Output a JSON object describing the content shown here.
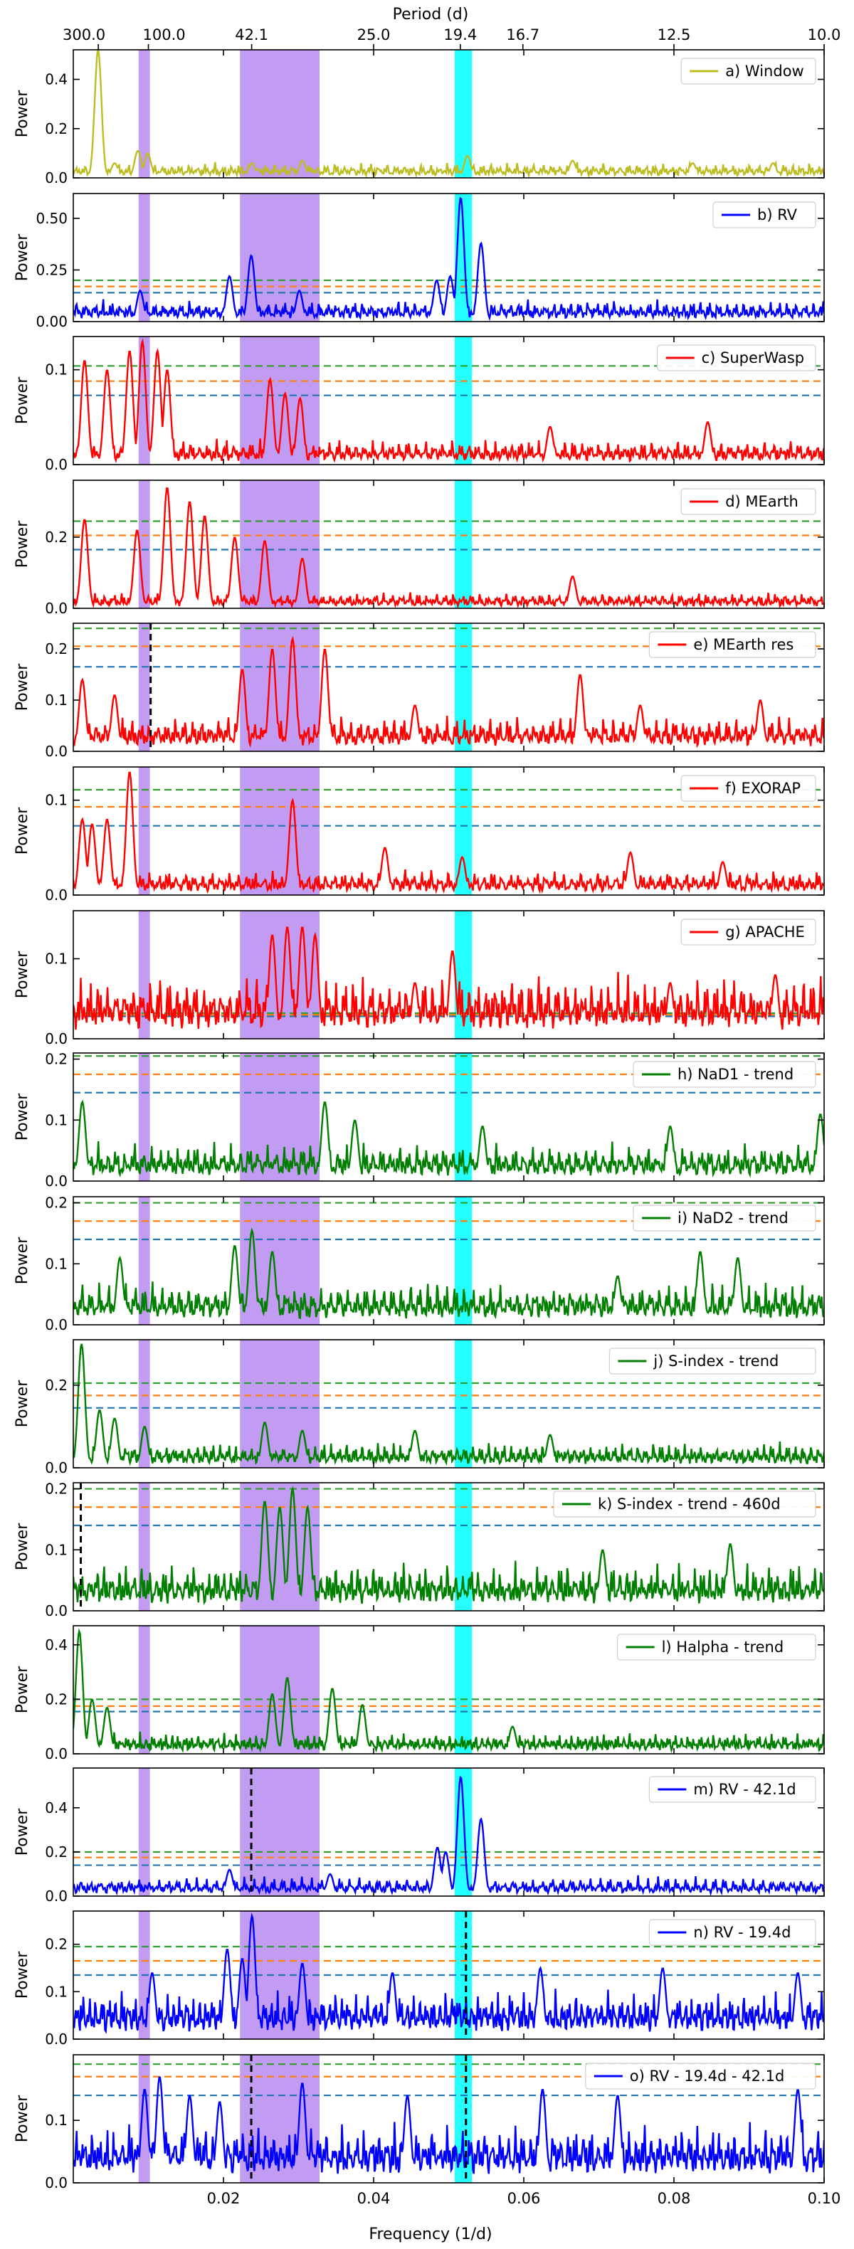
{
  "figure": {
    "top_axis_label": "Period (d)",
    "bottom_axis_label": "Frequency (1/d)",
    "ylabel": "Power"
  },
  "chart_data": {
    "type": "line",
    "x_range": [
      0.0,
      0.1
    ],
    "x_ticks": [
      {
        "value": 0.02,
        "label": "0.02"
      },
      {
        "value": 0.04,
        "label": "0.04"
      },
      {
        "value": 0.06,
        "label": "0.06"
      },
      {
        "value": 0.08,
        "label": "0.08"
      },
      {
        "value": 0.1,
        "label": "0.10"
      }
    ],
    "period_ticks": [
      {
        "period": 300.0,
        "label": "300.0"
      },
      {
        "period": 100.0,
        "label": "100.0"
      },
      {
        "period": 42.1,
        "label": "42.1"
      },
      {
        "period": 25.0,
        "label": "25.0"
      },
      {
        "period": 19.4,
        "label": "19.4"
      },
      {
        "period": 16.7,
        "label": "16.7"
      },
      {
        "period": 12.5,
        "label": "12.5"
      },
      {
        "period": 10.0,
        "label": "10.0"
      }
    ],
    "shaded_bands": [
      {
        "x0": 0.0087,
        "x1": 0.0102,
        "color": "#b78af0"
      },
      {
        "x0": 0.0222,
        "x1": 0.0328,
        "color": "#b78af0"
      },
      {
        "x0": 0.0508,
        "x1": 0.0531,
        "color": "#00ffff"
      }
    ],
    "threshold_colors": [
      "#1f77b4",
      "#ff7f0e",
      "#2ca02c"
    ],
    "panels": [
      {
        "label": "a) Window",
        "color": "#bcbd22",
        "ylim": [
          0,
          0.52
        ],
        "yticks": [
          0,
          0.2,
          0.4
        ],
        "ytick_labels": [
          "0.0",
          "0.2",
          "0.4"
        ],
        "thresholds": [],
        "peaks": [
          [
            0.0033,
            0.52
          ],
          [
            0.0036,
            0.14
          ],
          [
            0.0055,
            0.06
          ],
          [
            0.0086,
            0.11
          ],
          [
            0.0099,
            0.1
          ],
          [
            0.0238,
            0.06
          ],
          [
            0.0305,
            0.07
          ],
          [
            0.0525,
            0.09
          ],
          [
            0.0665,
            0.07
          ],
          [
            0.0825,
            0.06
          ],
          [
            0.0932,
            0.06
          ]
        ],
        "base": 0.035,
        "seed": 11
      },
      {
        "label": "b) RV",
        "color": "#0000ff",
        "ylim": [
          0,
          0.62
        ],
        "yticks": [
          0,
          0.25,
          0.5
        ],
        "ytick_labels": [
          "0.00",
          "0.25",
          "0.50"
        ],
        "thresholds": [
          0.14,
          0.17,
          0.2
        ],
        "peaks": [
          [
            0.0237,
            0.32
          ],
          [
            0.0208,
            0.22
          ],
          [
            0.0484,
            0.2
          ],
          [
            0.0516,
            0.6
          ],
          [
            0.0543,
            0.38
          ],
          [
            0.0502,
            0.22
          ],
          [
            0.0089,
            0.15
          ],
          [
            0.0301,
            0.15
          ]
        ],
        "base": 0.06,
        "seed": 22
      },
      {
        "label": "c) SuperWasp",
        "color": "#ff0000",
        "ylim": [
          0,
          0.135
        ],
        "yticks": [
          0,
          0.1
        ],
        "ytick_labels": [
          "0.0",
          "0.1"
        ],
        "thresholds": [
          0.073,
          0.088,
          0.104
        ],
        "peaks": [
          [
            0.0015,
            0.11
          ],
          [
            0.0045,
            0.1
          ],
          [
            0.0075,
            0.12
          ],
          [
            0.0092,
            0.13
          ],
          [
            0.0112,
            0.12
          ],
          [
            0.0125,
            0.1
          ],
          [
            0.0262,
            0.09
          ],
          [
            0.0282,
            0.075
          ],
          [
            0.0302,
            0.07
          ],
          [
            0.0635,
            0.04
          ],
          [
            0.0845,
            0.045
          ]
        ],
        "base": 0.015,
        "seed": 33
      },
      {
        "label": "d) MEarth",
        "color": "#ff0000",
        "ylim": [
          0,
          0.36
        ],
        "yticks": [
          0,
          0.2
        ],
        "ytick_labels": [
          "0.0",
          "0.2"
        ],
        "thresholds": [
          0.165,
          0.205,
          0.245
        ],
        "peaks": [
          [
            0.0015,
            0.25
          ],
          [
            0.0085,
            0.22
          ],
          [
            0.0125,
            0.34
          ],
          [
            0.0155,
            0.3
          ],
          [
            0.0175,
            0.26
          ],
          [
            0.0215,
            0.2
          ],
          [
            0.0255,
            0.19
          ],
          [
            0.0305,
            0.14
          ],
          [
            0.0665,
            0.09
          ]
        ],
        "base": 0.025,
        "seed": 44
      },
      {
        "label": "e) MEarth res",
        "color": "#ff0000",
        "ylim": [
          0,
          0.25
        ],
        "yticks": [
          0,
          0.1,
          0.2
        ],
        "ytick_labels": [
          "0.0",
          "0.1",
          "0.2"
        ],
        "thresholds": [
          0.165,
          0.205,
          0.24
        ],
        "peaks": [
          [
            0.0012,
            0.14
          ],
          [
            0.0055,
            0.11
          ],
          [
            0.0225,
            0.16
          ],
          [
            0.0265,
            0.2
          ],
          [
            0.0292,
            0.22
          ],
          [
            0.0335,
            0.2
          ],
          [
            0.0455,
            0.09
          ],
          [
            0.0675,
            0.15
          ],
          [
            0.0755,
            0.09
          ],
          [
            0.0915,
            0.1
          ]
        ],
        "base": 0.04,
        "seed": 55
      },
      {
        "label": "f) EXORAP",
        "color": "#ff0000",
        "ylim": [
          0,
          0.135
        ],
        "yticks": [
          0,
          0.1
        ],
        "ytick_labels": [
          "0.0",
          "0.1"
        ],
        "thresholds": [
          0.073,
          0.093,
          0.111
        ],
        "peaks": [
          [
            0.0012,
            0.08
          ],
          [
            0.0025,
            0.075
          ],
          [
            0.0045,
            0.08
          ],
          [
            0.0075,
            0.13
          ],
          [
            0.0292,
            0.1
          ],
          [
            0.0415,
            0.05
          ],
          [
            0.0518,
            0.04
          ],
          [
            0.0742,
            0.045
          ],
          [
            0.0865,
            0.035
          ]
        ],
        "base": 0.015,
        "seed": 66
      },
      {
        "label": "g) APACHE",
        "color": "#ff0000",
        "ylim": [
          0,
          0.16
        ],
        "yticks": [
          0,
          0.1
        ],
        "ytick_labels": [
          "0.0",
          "0.1"
        ],
        "thresholds": [
          0.028,
          0.03,
          0.032
        ],
        "peaks": [
          [
            0.0265,
            0.13
          ],
          [
            0.0285,
            0.14
          ],
          [
            0.0305,
            0.14
          ],
          [
            0.0322,
            0.13
          ],
          [
            0.0505,
            0.11
          ],
          [
            0.0455,
            0.07
          ],
          [
            0.0795,
            0.07
          ],
          [
            0.0935,
            0.08
          ]
        ],
        "base": 0.045,
        "seed": 77
      },
      {
        "label": "h) NaD1 - trend",
        "color": "#007f00",
        "ylim": [
          0,
          0.21
        ],
        "yticks": [
          0,
          0.1,
          0.2
        ],
        "ytick_labels": [
          "0.0",
          "0.1",
          "0.2"
        ],
        "thresholds": [
          0.145,
          0.175,
          0.205
        ],
        "peaks": [
          [
            0.0012,
            0.13
          ],
          [
            0.0335,
            0.13
          ],
          [
            0.0375,
            0.1
          ],
          [
            0.0545,
            0.09
          ],
          [
            0.0795,
            0.09
          ],
          [
            0.0995,
            0.11
          ]
        ],
        "base": 0.035,
        "seed": 88
      },
      {
        "label": "i) NaD2 - trend",
        "color": "#007f00",
        "ylim": [
          0,
          0.21
        ],
        "yticks": [
          0,
          0.1,
          0.2
        ],
        "ytick_labels": [
          "0.0",
          "0.1",
          "0.2"
        ],
        "thresholds": [
          0.14,
          0.17,
          0.2
        ],
        "peaks": [
          [
            0.0062,
            0.11
          ],
          [
            0.0215,
            0.13
          ],
          [
            0.0238,
            0.155
          ],
          [
            0.0265,
            0.12
          ],
          [
            0.0725,
            0.08
          ],
          [
            0.0835,
            0.12
          ],
          [
            0.0885,
            0.11
          ]
        ],
        "base": 0.04,
        "seed": 99
      },
      {
        "label": "j) S-index - trend",
        "color": "#007f00",
        "ylim": [
          0,
          0.31
        ],
        "yticks": [
          0,
          0.2
        ],
        "ytick_labels": [
          "0.0",
          "0.2"
        ],
        "thresholds": [
          0.145,
          0.175,
          0.205
        ],
        "peaks": [
          [
            0.0011,
            0.3
          ],
          [
            0.0035,
            0.14
          ],
          [
            0.0055,
            0.12
          ],
          [
            0.0095,
            0.1
          ],
          [
            0.0255,
            0.11
          ],
          [
            0.0305,
            0.09
          ],
          [
            0.0455,
            0.09
          ],
          [
            0.0635,
            0.08
          ]
        ],
        "base": 0.035,
        "seed": 101
      },
      {
        "label": "k) S-index - trend - 460d",
        "color": "#007f00",
        "ylim": [
          0,
          0.21
        ],
        "yticks": [
          0,
          0.1,
          0.2
        ],
        "ytick_labels": [
          "0.0",
          "0.1",
          "0.2"
        ],
        "thresholds": [
          0.14,
          0.17,
          0.2
        ],
        "peaks": [
          [
            0.0255,
            0.18
          ],
          [
            0.0275,
            0.17
          ],
          [
            0.0292,
            0.2
          ],
          [
            0.0312,
            0.17
          ],
          [
            0.0705,
            0.1
          ],
          [
            0.0875,
            0.11
          ]
        ],
        "base": 0.045,
        "seed": 113
      },
      {
        "label": "l) Halpha - trend",
        "color": "#007f00",
        "ylim": [
          0,
          0.47
        ],
        "yticks": [
          0,
          0.2,
          0.4
        ],
        "ytick_labels": [
          "0.0",
          "0.2",
          "0.4"
        ],
        "thresholds": [
          0.155,
          0.175,
          0.2
        ],
        "peaks": [
          [
            0.0008,
            0.45
          ],
          [
            0.0025,
            0.2
          ],
          [
            0.0045,
            0.17
          ],
          [
            0.0265,
            0.22
          ],
          [
            0.0285,
            0.28
          ],
          [
            0.0345,
            0.24
          ],
          [
            0.0385,
            0.18
          ],
          [
            0.0585,
            0.1
          ]
        ],
        "base": 0.045,
        "seed": 127
      },
      {
        "label": "m) RV - 42.1d",
        "color": "#0000ff",
        "ylim": [
          0,
          0.58
        ],
        "yticks": [
          0,
          0.2,
          0.4
        ],
        "ytick_labels": [
          "0.0",
          "0.2",
          "0.4"
        ],
        "thresholds": [
          0.14,
          0.175,
          0.2
        ],
        "peaks": [
          [
            0.0516,
            0.54
          ],
          [
            0.0543,
            0.35
          ],
          [
            0.0496,
            0.2
          ],
          [
            0.0485,
            0.22
          ],
          [
            0.0208,
            0.12
          ],
          [
            0.0342,
            0.1
          ]
        ],
        "base": 0.05,
        "seed": 131
      },
      {
        "label": "n) RV - 19.4d",
        "color": "#0000ff",
        "ylim": [
          0,
          0.27
        ],
        "yticks": [
          0,
          0.1,
          0.2
        ],
        "ytick_labels": [
          "0.0",
          "0.1",
          "0.2"
        ],
        "thresholds": [
          0.135,
          0.165,
          0.195
        ],
        "peaks": [
          [
            0.0238,
            0.26
          ],
          [
            0.0205,
            0.19
          ],
          [
            0.0225,
            0.17
          ],
          [
            0.0105,
            0.14
          ],
          [
            0.0305,
            0.16
          ],
          [
            0.0425,
            0.14
          ],
          [
            0.0622,
            0.15
          ],
          [
            0.0785,
            0.15
          ],
          [
            0.0965,
            0.14
          ]
        ],
        "base": 0.06,
        "seed": 149
      },
      {
        "label": "o) RV - 19.4d - 42.1d",
        "color": "#0000ff",
        "ylim": [
          0,
          0.205
        ],
        "yticks": [
          0,
          0.1
        ],
        "ytick_labels": [
          "0.0",
          "0.1"
        ],
        "thresholds": [
          0.14,
          0.17,
          0.19
        ],
        "peaks": [
          [
            0.0095,
            0.15
          ],
          [
            0.0115,
            0.17
          ],
          [
            0.0155,
            0.14
          ],
          [
            0.0305,
            0.16
          ],
          [
            0.0195,
            0.13
          ],
          [
            0.0445,
            0.14
          ],
          [
            0.0625,
            0.15
          ],
          [
            0.0725,
            0.14
          ],
          [
            0.0965,
            0.15
          ]
        ],
        "base": 0.055,
        "seed": 157
      }
    ],
    "dashed_markers": [
      {
        "panel": 4,
        "x": 0.0103
      },
      {
        "panel": 10,
        "x": 0.001
      },
      {
        "panel": 12,
        "x": 0.0237
      },
      {
        "panel": 13,
        "x": 0.0523
      },
      {
        "panel": 14,
        "x": 0.0237
      },
      {
        "panel": 14,
        "x": 0.0523
      }
    ]
  }
}
